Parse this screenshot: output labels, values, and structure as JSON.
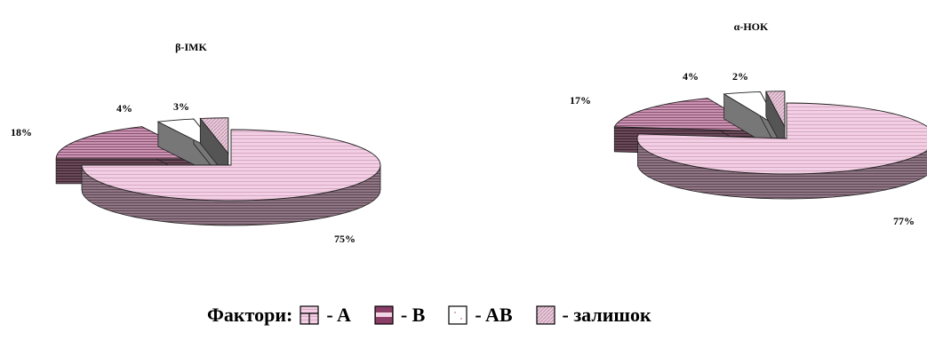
{
  "chart_data": [
    {
      "type": "pie",
      "title": "β-IMK",
      "categories": [
        "A",
        "B",
        "AB",
        "залишок"
      ],
      "values": [
        75,
        18,
        4,
        3
      ],
      "value_labels": [
        "75%",
        "18%",
        "4%",
        "3%"
      ]
    },
    {
      "type": "pie",
      "title": "α-HOK",
      "categories": [
        "A",
        "B",
        "AB",
        "залишок"
      ],
      "values": [
        77,
        17,
        4,
        2
      ],
      "value_labels": [
        "77%",
        "17%",
        "4%",
        "2%"
      ]
    }
  ],
  "legend": {
    "title": "Фактори:",
    "items": [
      {
        "key": "A",
        "label": "- A"
      },
      {
        "key": "B",
        "label": "- B"
      },
      {
        "key": "AB",
        "label": "- AB"
      },
      {
        "key": "rest",
        "label": "- залишок"
      }
    ]
  },
  "colors": {
    "A": "#f2cfe4",
    "B": "#b77a9b",
    "AB": "#ffffff",
    "rest": "#e4c3d6",
    "side_A": "#8a6f7e",
    "side_B": "#5c3f4d",
    "side_AB": "#777777",
    "side_rest": "#555555",
    "outline": "#222222"
  }
}
